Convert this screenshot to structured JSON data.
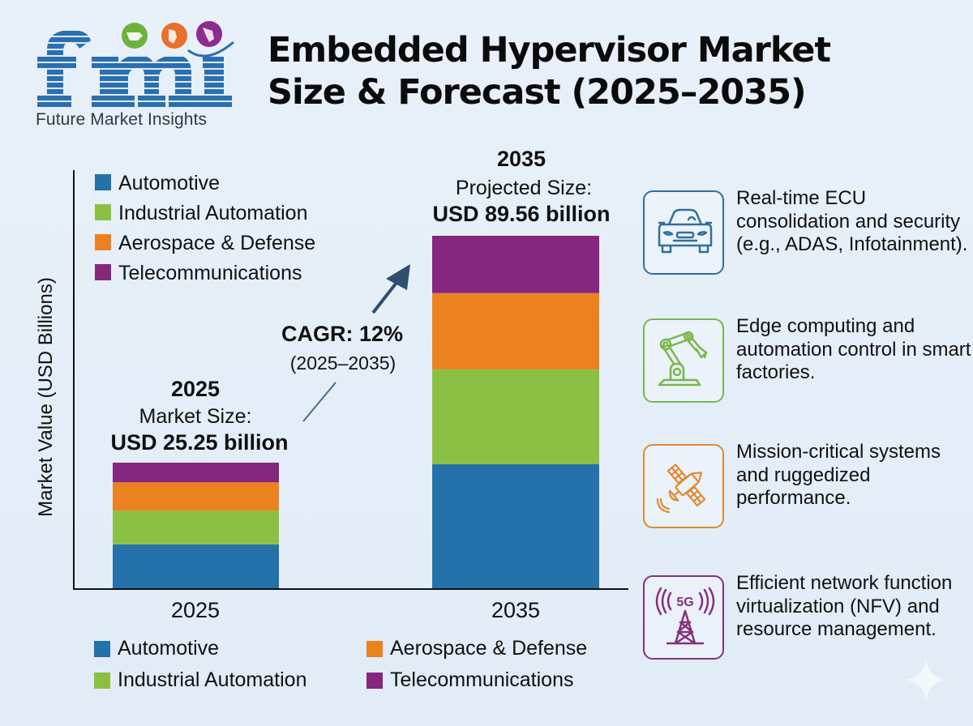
{
  "brand": {
    "logo_letters": "fmi",
    "name": "Future Market Insights",
    "logo_color": "#2a6fb0",
    "globe_colors": [
      "#6cb33e",
      "#e8702a",
      "#8b2c8f"
    ]
  },
  "title": {
    "line1": "Embedded Hypervisor Market",
    "line2": "Size & Forecast (2025–2035)"
  },
  "chart_data": {
    "type": "bar",
    "stacked": true,
    "title": "Embedded Hypervisor Market Size & Forecast (2025–2035)",
    "xlabel": "",
    "ylabel": "Market Value (USD Billions)",
    "categories": [
      "2025",
      "2035"
    ],
    "series": [
      {
        "name": "Automotive",
        "color": "#2571a9",
        "values": [
          8.8,
          31.5
        ]
      },
      {
        "name": "Industrial Automation",
        "color": "#8cc044",
        "values": [
          6.8,
          24.1
        ]
      },
      {
        "name": "Aerospace & Defense",
        "color": "#ec821f",
        "values": [
          5.7,
          19.4
        ]
      },
      {
        "name": "Telecommunications",
        "color": "#85267f",
        "values": [
          3.95,
          14.56
        ]
      }
    ],
    "totals": [
      25.25,
      89.56
    ],
    "ylim": [
      0,
      105
    ],
    "grid": false,
    "legend": "top-left",
    "annotations": {
      "bar_2025": {
        "year": "2025",
        "label": "Market Size:",
        "value": "USD 25.25 billion"
      },
      "bar_2035": {
        "year": "2035",
        "label": "Projected Size:",
        "value": "USD 89.56 billion"
      },
      "cagr": {
        "label": "CAGR: 12%",
        "period": "(2025–2035)"
      }
    }
  },
  "bottom_legend": [
    {
      "label": "Automotive",
      "color": "#2571a9"
    },
    {
      "label": "Aerospace & Defense",
      "color": "#ec821f"
    },
    {
      "label": "Industrial Automation",
      "color": "#8cc044"
    },
    {
      "label": "Telecommunications",
      "color": "#85267f"
    }
  ],
  "segments": [
    {
      "icon": "car-icon",
      "color": "#2f6f9f",
      "text": "Real-time ECU consolidation and security (e.g., ADAS, Infotainment)."
    },
    {
      "icon": "robot-arm-icon",
      "color": "#79b64b",
      "text": "Edge computing and automation control in smart factories."
    },
    {
      "icon": "satellite-icon",
      "color": "#e08a2e",
      "text": "Mission-critical systems and ruggedized performance."
    },
    {
      "icon": "5g-tower-icon",
      "color": "#84317f",
      "text": "Efficient network function virtualization (NFV) and resource management.",
      "icon_label": "5G"
    }
  ]
}
